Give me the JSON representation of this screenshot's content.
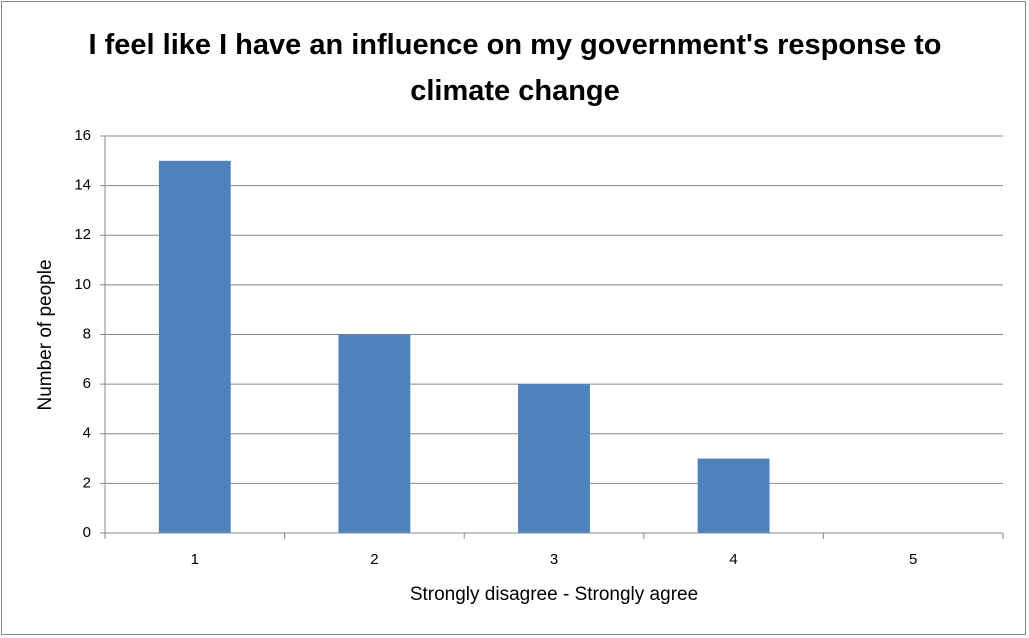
{
  "chart_data": {
    "type": "bar",
    "title": "I feel like I have an influence on my government's response to climate change",
    "xlabel": "Strongly disagree - Strongly agree",
    "ylabel": "Number of people",
    "categories": [
      "1",
      "2",
      "3",
      "4",
      "5"
    ],
    "values": [
      15,
      8,
      6,
      3,
      0
    ],
    "color": "#4f81bd",
    "ylim": [
      0,
      16
    ],
    "yticks": [
      0,
      2,
      4,
      6,
      8,
      10,
      12,
      14,
      16
    ],
    "grid": true
  }
}
